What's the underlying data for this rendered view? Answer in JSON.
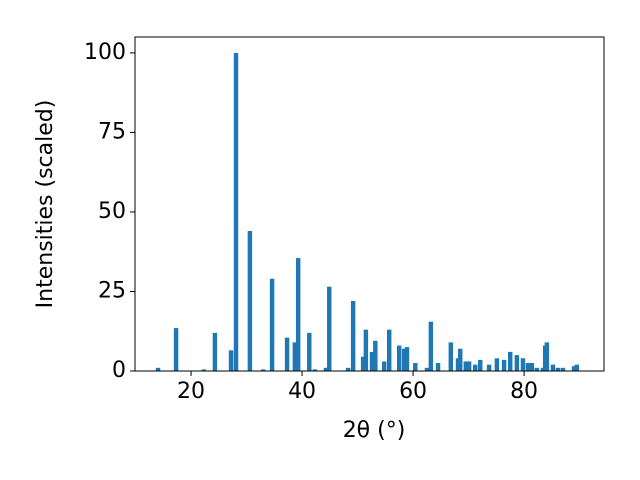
{
  "chart_data": {
    "type": "bar",
    "x_label": "2θ (°)",
    "y_label": "Intensities (scaled)",
    "color": "#1f77b4",
    "x": [
      14.05,
      17.3,
      22.3,
      24.3,
      27.2,
      28.1,
      30.6,
      33.0,
      34.6,
      37.3,
      38.7,
      39.3,
      41.3,
      42.3,
      44.3,
      44.9,
      48.3,
      49.2,
      51.0,
      51.5,
      52.6,
      53.2,
      54.8,
      55.7,
      57.5,
      58.4,
      58.9,
      60.4,
      62.5,
      63.2,
      64.5,
      66.8,
      68.1,
      68.5,
      69.5,
      70.1,
      71.2,
      72.1,
      73.7,
      75.1,
      76.4,
      77.5,
      78.7,
      79.8,
      80.7,
      81.4,
      82.3,
      83.4,
      83.8,
      84.1,
      85.2,
      86.1,
      87.0,
      89.0,
      89.5
    ],
    "values": [
      1,
      13.5,
      0.5,
      12,
      6.5,
      100,
      44,
      0.5,
      29,
      10.5,
      9,
      35.5,
      12,
      0.5,
      1,
      26.5,
      1,
      22,
      4.5,
      13,
      6,
      9.5,
      3,
      13,
      8,
      7,
      7.5,
      2.5,
      1,
      15.5,
      2.5,
      9,
      4,
      7,
      3,
      3,
      2,
      3.5,
      2,
      4,
      3.5,
      6,
      5,
      4,
      2.5,
      2.5,
      1,
      1,
      8,
      9,
      2,
      1,
      1,
      1.5,
      2
    ],
    "xlim": [
      9.9,
      94.4
    ],
    "ylim": [
      0,
      105
    ],
    "xticks": [
      20,
      40,
      60,
      80
    ],
    "yticks": [
      0,
      25,
      50,
      75,
      100
    ]
  }
}
